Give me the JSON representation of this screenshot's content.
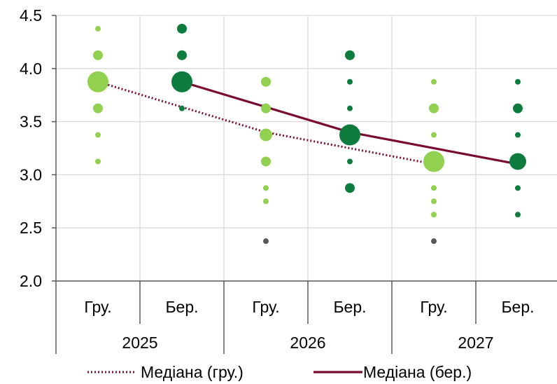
{
  "chart_data": {
    "type": "scatter",
    "y_axis": {
      "ylim": [
        2.0,
        4.5
      ],
      "ticks": [
        "2.0",
        "2.5",
        "3.0",
        "3.5",
        "4.0",
        "4.5"
      ]
    },
    "categories": [
      "Гру.",
      "Бер.",
      "Гру.",
      "Бер.",
      "Гру.",
      "Бер."
    ],
    "year_groups": [
      {
        "label": "2025",
        "span": [
          0,
          1
        ]
      },
      {
        "label": "2026",
        "span": [
          2,
          3
        ]
      },
      {
        "label": "2027",
        "span": [
          4,
          5
        ]
      }
    ],
    "colors": {
      "light_green": "#92D050",
      "dark_green": "#0E7C3E",
      "gray": "#595959",
      "median_line": "#7B0C31",
      "grid": "#D9D9D9",
      "axis": "#595959"
    },
    "dots": [
      {
        "category": 0,
        "y": 4.375,
        "size": 1,
        "color": "light_green"
      },
      {
        "category": 0,
        "y": 4.125,
        "size": 2,
        "color": "light_green"
      },
      {
        "category": 0,
        "y": 3.875,
        "size": 5,
        "color": "light_green"
      },
      {
        "category": 0,
        "y": 3.625,
        "size": 2,
        "color": "light_green"
      },
      {
        "category": 0,
        "y": 3.375,
        "size": 1,
        "color": "light_green"
      },
      {
        "category": 0,
        "y": 3.125,
        "size": 1,
        "color": "light_green"
      },
      {
        "category": 1,
        "y": 4.375,
        "size": 2,
        "color": "dark_green"
      },
      {
        "category": 1,
        "y": 4.125,
        "size": 2,
        "color": "dark_green"
      },
      {
        "category": 1,
        "y": 3.875,
        "size": 5,
        "color": "dark_green"
      },
      {
        "category": 1,
        "y": 3.625,
        "size": 1,
        "color": "dark_green"
      },
      {
        "category": 2,
        "y": 3.875,
        "size": 2,
        "color": "light_green"
      },
      {
        "category": 2,
        "y": 3.625,
        "size": 2,
        "color": "light_green"
      },
      {
        "category": 2,
        "y": 3.375,
        "size": 3,
        "color": "light_green"
      },
      {
        "category": 2,
        "y": 3.125,
        "size": 2,
        "color": "light_green"
      },
      {
        "category": 2,
        "y": 2.875,
        "size": 1,
        "color": "light_green"
      },
      {
        "category": 2,
        "y": 2.75,
        "size": 1,
        "color": "light_green"
      },
      {
        "category": 2,
        "y": 2.375,
        "size": 1,
        "color": "gray"
      },
      {
        "category": 3,
        "y": 4.125,
        "size": 2,
        "color": "dark_green"
      },
      {
        "category": 3,
        "y": 3.875,
        "size": 1,
        "color": "dark_green"
      },
      {
        "category": 3,
        "y": 3.625,
        "size": 1,
        "color": "dark_green"
      },
      {
        "category": 3,
        "y": 3.375,
        "size": 5,
        "color": "dark_green"
      },
      {
        "category": 3,
        "y": 3.125,
        "size": 1,
        "color": "dark_green"
      },
      {
        "category": 3,
        "y": 2.875,
        "size": 2,
        "color": "dark_green"
      },
      {
        "category": 4,
        "y": 3.875,
        "size": 1,
        "color": "light_green"
      },
      {
        "category": 4,
        "y": 3.625,
        "size": 2,
        "color": "light_green"
      },
      {
        "category": 4,
        "y": 3.375,
        "size": 1,
        "color": "light_green"
      },
      {
        "category": 4,
        "y": 3.125,
        "size": 5,
        "color": "light_green"
      },
      {
        "category": 4,
        "y": 2.875,
        "size": 1,
        "color": "light_green"
      },
      {
        "category": 4,
        "y": 2.75,
        "size": 1,
        "color": "light_green"
      },
      {
        "category": 4,
        "y": 2.625,
        "size": 1,
        "color": "light_green"
      },
      {
        "category": 4,
        "y": 2.375,
        "size": 1,
        "color": "gray"
      },
      {
        "category": 5,
        "y": 3.875,
        "size": 1,
        "color": "dark_green"
      },
      {
        "category": 5,
        "y": 3.625,
        "size": 2,
        "color": "dark_green"
      },
      {
        "category": 5,
        "y": 3.375,
        "size": 1,
        "color": "dark_green"
      },
      {
        "category": 5,
        "y": 3.125,
        "size": 4,
        "color": "dark_green"
      },
      {
        "category": 5,
        "y": 2.875,
        "size": 1,
        "color": "dark_green"
      },
      {
        "category": 5,
        "y": 2.625,
        "size": 1,
        "color": "dark_green"
      }
    ],
    "series": [
      {
        "name": "Медіана (гру.)",
        "style": "dotted",
        "points": [
          {
            "category": 0,
            "y": 3.875
          },
          {
            "category": 2,
            "y": 3.4
          },
          {
            "category": 4,
            "y": 3.1
          }
        ]
      },
      {
        "name": "Медіана (бер.)",
        "style": "solid",
        "points": [
          {
            "category": 1,
            "y": 3.875
          },
          {
            "category": 3,
            "y": 3.4
          },
          {
            "category": 5,
            "y": 3.1
          }
        ]
      }
    ],
    "legend": {
      "placement": "bottom"
    }
  }
}
